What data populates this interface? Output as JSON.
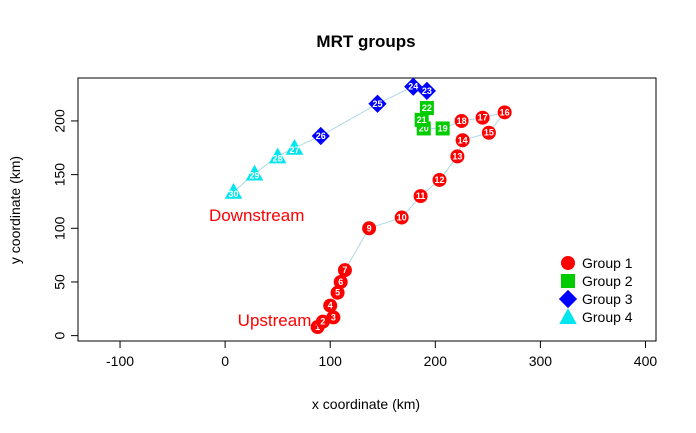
{
  "chart_data": {
    "type": "scatter",
    "title": "MRT groups",
    "xlabel": "x coordinate (km)",
    "ylabel": "y coordinate (km)",
    "xlim": [
      -140,
      410
    ],
    "ylim": [
      -5,
      240
    ],
    "xticks": [
      -100,
      0,
      100,
      200,
      300,
      400
    ],
    "yticks": [
      0,
      50,
      100,
      150,
      200
    ],
    "grid": false,
    "legend_position": "bottom-right",
    "line_color": "#add8e6",
    "series": [
      {
        "name": "Group 1",
        "color": "#ff0000",
        "marker": "circle",
        "points": [
          {
            "label": "1",
            "x": 88,
            "y": 8
          },
          {
            "label": "2",
            "x": 93,
            "y": 13
          },
          {
            "label": "3",
            "x": 103,
            "y": 17
          },
          {
            "label": "4",
            "x": 100,
            "y": 28
          },
          {
            "label": "5",
            "x": 107,
            "y": 40
          },
          {
            "label": "6",
            "x": 110,
            "y": 50
          },
          {
            "label": "7",
            "x": 114,
            "y": 61
          },
          {
            "label": "9",
            "x": 137,
            "y": 100
          },
          {
            "label": "10",
            "x": 168,
            "y": 110
          },
          {
            "label": "11",
            "x": 186,
            "y": 130
          },
          {
            "label": "12",
            "x": 204,
            "y": 145
          },
          {
            "label": "13",
            "x": 221,
            "y": 167
          },
          {
            "label": "14",
            "x": 226,
            "y": 182
          },
          {
            "label": "15",
            "x": 251,
            "y": 189
          },
          {
            "label": "16",
            "x": 266,
            "y": 208
          },
          {
            "label": "17",
            "x": 245,
            "y": 203
          },
          {
            "label": "18",
            "x": 225,
            "y": 200
          }
        ]
      },
      {
        "name": "Group 2",
        "color": "#00cc00",
        "marker": "square",
        "points": [
          {
            "label": "19",
            "x": 207,
            "y": 193
          },
          {
            "label": "20",
            "x": 189,
            "y": 193
          },
          {
            "label": "21",
            "x": 187,
            "y": 201
          },
          {
            "label": "22",
            "x": 192,
            "y": 212
          }
        ]
      },
      {
        "name": "Group 3",
        "color": "#0000ff",
        "marker": "diamond",
        "points": [
          {
            "label": "23",
            "x": 192,
            "y": 228
          },
          {
            "label": "24",
            "x": 179,
            "y": 232
          },
          {
            "label": "25",
            "x": 145,
            "y": 216
          },
          {
            "label": "26",
            "x": 91,
            "y": 186
          }
        ]
      },
      {
        "name": "Group 4",
        "color": "#00e5ee",
        "marker": "triangle",
        "points": [
          {
            "label": "27",
            "x": 66,
            "y": 175
          },
          {
            "label": "28",
            "x": 50,
            "y": 167
          },
          {
            "label": "29",
            "x": 28,
            "y": 151
          },
          {
            "label": "30",
            "x": 8,
            "y": 134
          }
        ]
      }
    ],
    "annotations": [
      {
        "text": "Downstream",
        "x": 30,
        "y": 111,
        "color": "#ff0000"
      },
      {
        "text": "Upstream",
        "x": 47,
        "y": 13,
        "color": "#ff0000"
      }
    ]
  }
}
